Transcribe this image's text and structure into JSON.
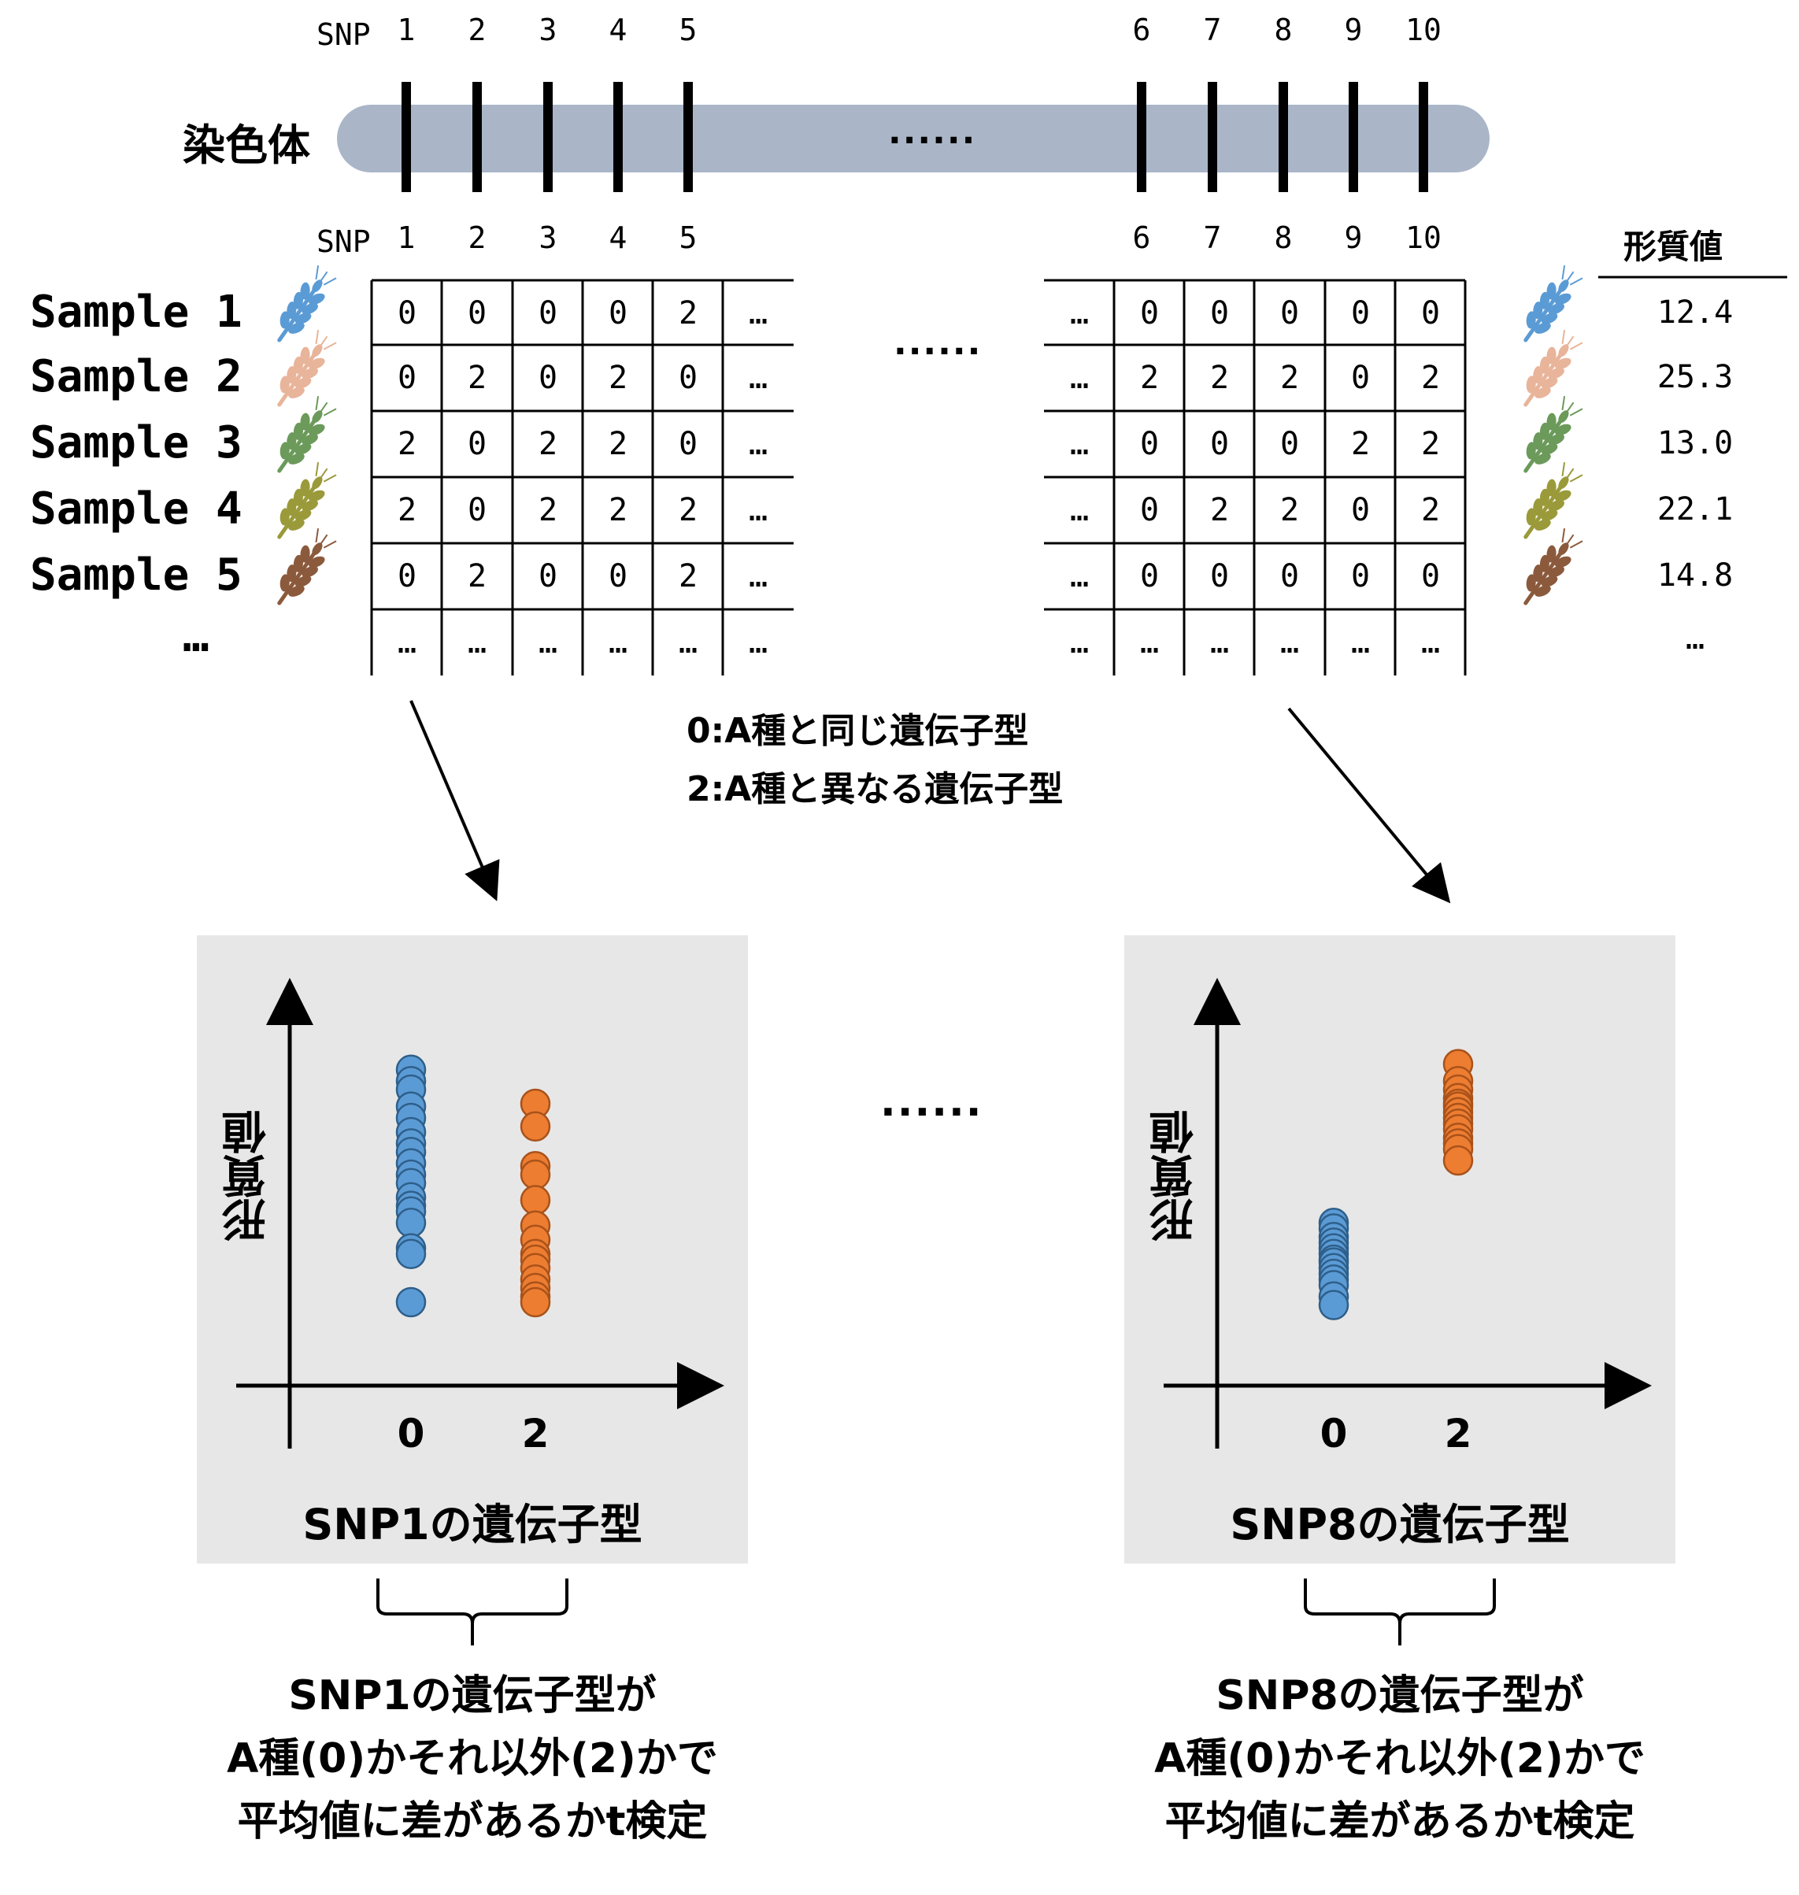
{
  "chromosome": {
    "label": "染色体",
    "middle": "......"
  },
  "snp_label": "SNP",
  "snp_numbers": [
    "1",
    "2",
    "3",
    "4",
    "5",
    "6",
    "7",
    "8",
    "9",
    "10"
  ],
  "trait_header": "形質値",
  "samples": [
    {
      "name": "Sample 1",
      "left": [
        "0",
        "0",
        "0",
        "0",
        "2",
        "…"
      ],
      "right": [
        "…",
        "0",
        "0",
        "0",
        "0",
        "0"
      ],
      "trait": "12.4",
      "wheat_color": "#5b9bd5"
    },
    {
      "name": "Sample 2",
      "left": [
        "0",
        "2",
        "0",
        "2",
        "0",
        "…"
      ],
      "right": [
        "…",
        "2",
        "2",
        "2",
        "0",
        "2"
      ],
      "trait": "25.3",
      "wheat_color": "#e8b49a"
    },
    {
      "name": "Sample 3",
      "left": [
        "2",
        "0",
        "2",
        "2",
        "0",
        "…"
      ],
      "right": [
        "…",
        "0",
        "0",
        "0",
        "2",
        "2"
      ],
      "trait": "13.0",
      "wheat_color": "#6b9a5a"
    },
    {
      "name": "Sample 4",
      "left": [
        "2",
        "0",
        "2",
        "2",
        "2",
        "…"
      ],
      "right": [
        "…",
        "0",
        "2",
        "2",
        "0",
        "2"
      ],
      "trait": "22.1",
      "wheat_color": "#9a9a3a"
    },
    {
      "name": "Sample 5",
      "left": [
        "0",
        "2",
        "0",
        "0",
        "2",
        "…"
      ],
      "right": [
        "…",
        "0",
        "0",
        "0",
        "0",
        "0"
      ],
      "trait": "14.8",
      "wheat_color": "#8b5a3c"
    }
  ],
  "last_row": {
    "name": "…",
    "cell": "…",
    "trait": "…"
  },
  "table_middle": "......",
  "legend": [
    "0:A種と同じ遺伝子型",
    "2:A種と異なる遺伝子型"
  ],
  "plots": [
    {
      "xtitle": "SNP1の遺伝子型",
      "ytitle": "形質値",
      "xticks": [
        "0",
        "2"
      ],
      "caption": [
        "SNP1の遺伝子型が",
        "A種(0)かそれ以外(2)かで",
        "平均値に差があるかt検定"
      ],
      "chart_data": {
        "type": "scatter",
        "categories": [
          "0",
          "2"
        ],
        "series": [
          {
            "category": "0",
            "color": "#5b9bd5",
            "values": [
              0.92,
              0.88,
              0.85,
              0.79,
              0.75,
              0.7,
              0.66,
              0.63,
              0.59,
              0.55,
              0.52,
              0.47,
              0.44,
              0.42,
              0.38,
              0.29,
              0.27,
              0.1
            ]
          },
          {
            "category": "2",
            "color": "#ed7d31",
            "values": [
              0.8,
              0.72,
              0.58,
              0.55,
              0.46,
              0.37,
              0.32,
              0.27,
              0.25,
              0.22,
              0.18,
              0.15,
              0.12,
              0.1
            ]
          }
        ]
      }
    },
    {
      "xtitle": "SNP8の遺伝子型",
      "ytitle": "形質値",
      "xticks": [
        "0",
        "2"
      ],
      "caption": [
        "SNP8の遺伝子型が",
        "A種(0)かそれ以外(2)かで",
        "平均値に差があるかt検定"
      ],
      "chart_data": {
        "type": "scatter",
        "categories": [
          "0",
          "2"
        ],
        "series": [
          {
            "category": "0",
            "color": "#5b9bd5",
            "values": [
              0.38,
              0.36,
              0.33,
              0.31,
              0.29,
              0.27,
              0.25,
              0.24,
              0.22,
              0.2,
              0.18,
              0.16,
              0.12,
              0.09
            ]
          },
          {
            "category": "2",
            "color": "#ed7d31",
            "values": [
              0.94,
              0.88,
              0.85,
              0.82,
              0.8,
              0.79,
              0.77,
              0.75,
              0.73,
              0.71,
              0.68,
              0.66,
              0.64,
              0.6
            ]
          }
        ]
      }
    }
  ],
  "plots_middle": "......"
}
